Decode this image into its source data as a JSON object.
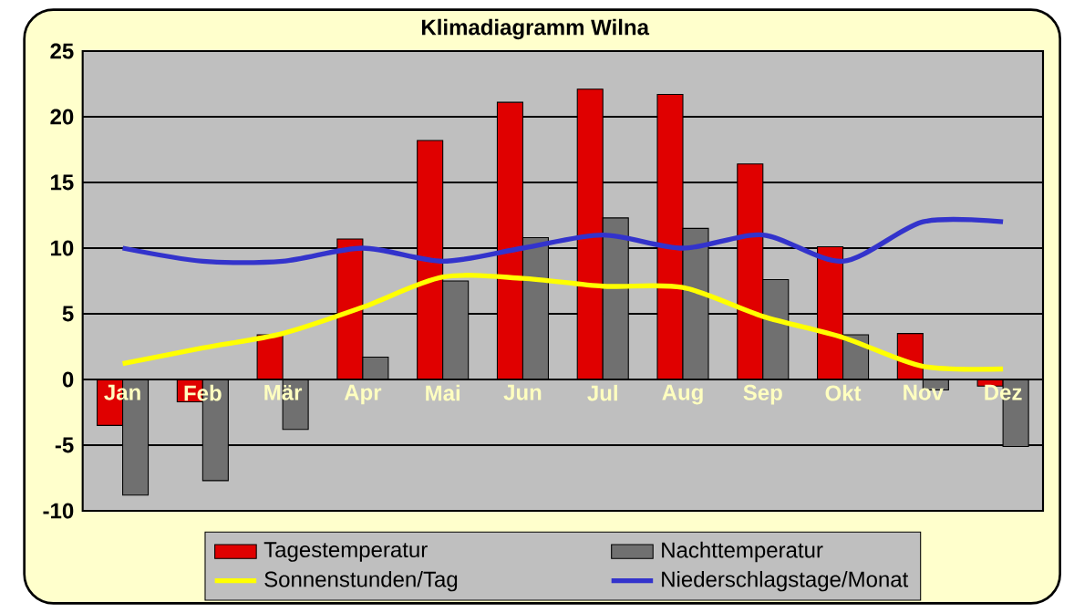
{
  "chart_data": {
    "type": "bar",
    "title": "Klimadiagramm Wilna",
    "categories": [
      "Jan",
      "Feb",
      "Mär",
      "Apr",
      "Mai",
      "Jun",
      "Jul",
      "Aug",
      "Sep",
      "Okt",
      "Nov",
      "Dez"
    ],
    "series": [
      {
        "name": "Tagestemperatur",
        "color": "#e00000",
        "values": [
          -3.5,
          -1.7,
          3.4,
          10.7,
          18.2,
          21.1,
          22.1,
          21.7,
          16.4,
          10.1,
          3.5,
          -0.5
        ]
      },
      {
        "name": "Nachttemperatur",
        "color": "#707070",
        "values": [
          -8.8,
          -7.7,
          -3.8,
          1.7,
          7.5,
          10.8,
          12.3,
          11.5,
          7.6,
          3.4,
          -0.8,
          -5.1
        ]
      },
      {
        "name": "Sonnenstunden/Tag",
        "type": "line",
        "color": "#ffff00",
        "values": [
          1.2,
          2.4,
          3.5,
          5.5,
          7.8,
          7.7,
          7.1,
          7.0,
          4.8,
          3.2,
          1.0,
          0.8
        ]
      },
      {
        "name": "Niederschlagstage/Monat",
        "type": "line",
        "color": "#3333cc",
        "values": [
          10,
          9,
          9,
          10,
          9,
          10,
          11,
          10,
          11,
          9,
          12,
          12
        ]
      }
    ],
    "ylim": [
      -10,
      25
    ],
    "yticks": [
      -10,
      -5,
      0,
      5,
      10,
      15,
      20,
      25
    ],
    "grid": "y",
    "legend": "bottom",
    "marker": "none"
  }
}
